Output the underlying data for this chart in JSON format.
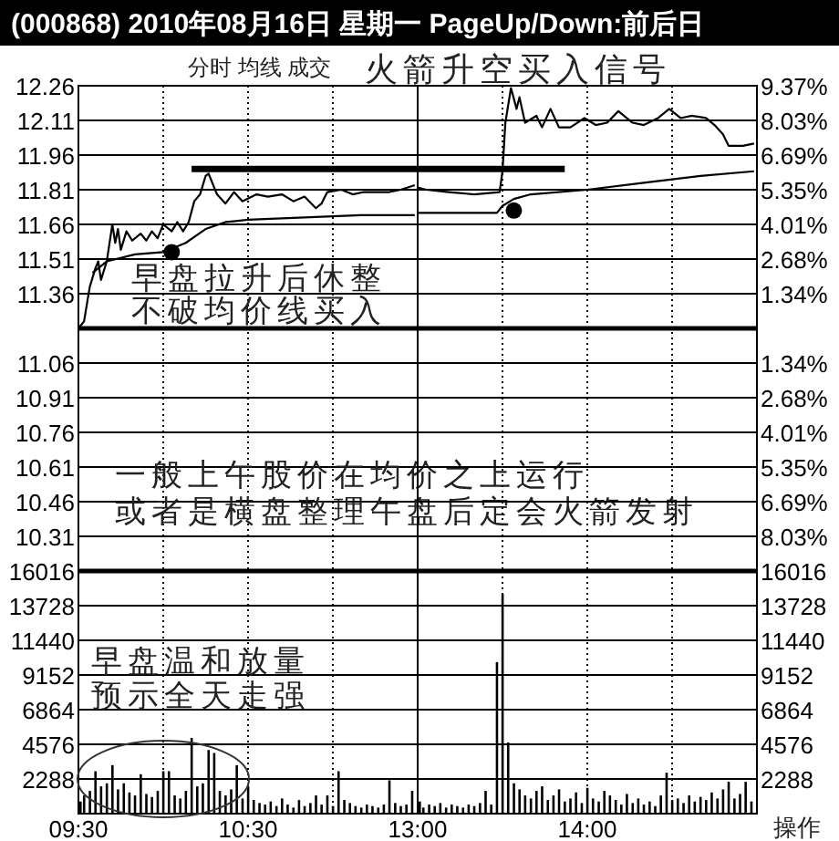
{
  "chart_data": [
    {
      "type": "line",
      "title": "(000868) 2010年08月16日 星期一 PageUp/Down:前后日",
      "annotations": [
        "分时 均线 成交",
        "火箭升空买入信号",
        "早盘拉升后休整",
        "不破均价线买入",
        "一般上午股价在均价之上运行",
        "或者是横盘整理午盘后定会火箭发射"
      ],
      "xlim": [
        9.5,
        11.5
      ],
      "xticks": [
        9.5,
        10,
        10.5,
        11
      ],
      "ylim": [
        10.16,
        12.26
      ],
      "yticks": [
        12.26,
        12.11,
        11.96,
        11.81,
        11.66,
        11.51,
        11.36,
        11.06,
        10.91,
        10.76,
        10.61,
        10.46,
        10.31
      ],
      "ref_lines": [
        {
          "axis": "y",
          "value": 11.21
        }
      ],
      "grid": true,
      "tick_labels": "y",
      "series": [
        {
          "color": "#000000",
          "x": [
            9.5,
            9.533,
            9.567,
            9.6,
            9.617,
            9.633,
            9.667,
            9.7,
            9.717,
            9.733,
            9.75,
            9.783,
            9.817,
            9.867,
            9.9,
            9.933,
            9.967,
            10,
            10.05,
            10.083,
            10.117,
            10.15,
            10.183,
            10.217,
            10.25,
            10.267,
            10.317,
            10.367,
            10.417,
            10.467,
            10.55,
            10.617,
            10.7,
            10.767,
            10.833,
            10.9,
            10.933,
            10.967,
            11.05,
            11.117,
            11.183,
            11.333,
            11.4,
            11.483
          ],
          "values": [
            11.21,
            11.24,
            11.39,
            11.47,
            11.5,
            11.42,
            11.5,
            11.66,
            11.58,
            11.64,
            11.55,
            11.63,
            11.59,
            11.62,
            11.59,
            11.63,
            11.6,
            11.66,
            11.63,
            11.67,
            11.63,
            11.67,
            11.76,
            11.79,
            11.87,
            11.88,
            11.79,
            11.75,
            11.8,
            11.76,
            11.79,
            11.78,
            11.79,
            11.76,
            11.78,
            11.73,
            11.75,
            11.8,
            11.81,
            11.79,
            11.8,
            11.8,
            11.81,
            11.83
          ]
        },
        {
          "color": "#000000",
          "x": [
            9.583,
            9.667,
            9.833,
            10,
            10.133,
            10.25,
            10.367,
            10.5,
            10.833,
            11.167,
            11.483
          ],
          "values": [
            11.45,
            11.5,
            11.53,
            11.54,
            11.58,
            11.64,
            11.67,
            11.68,
            11.69,
            11.7,
            11.7
          ]
        },
        {
          "color": "#000000",
          "x": [
            10.167,
            11.5
          ],
          "values": [
            11.9,
            11.9
          ]
        },
        {
          "type": "scatter",
          "color": "#000000",
          "marker": "circle",
          "x": [
            10.05
          ],
          "values": [
            11.54
          ]
        }
      ]
    },
    {
      "type": "line",
      "xlim": [
        13,
        15
      ],
      "xticks": [
        13,
        13.5,
        14,
        14.5
      ],
      "ylim": [
        10.16,
        12.26
      ],
      "yticks": [
        12.26,
        12.11,
        11.96,
        11.81,
        11.66,
        11.51,
        11.36,
        11.06,
        10.91,
        10.76,
        10.61,
        10.46,
        10.31
      ],
      "y2lim": [
        -9.37,
        9.37
      ],
      "y2ticks": [
        {
          "value": 9.37,
          "label": "9.37%"
        },
        {
          "value": 8.03,
          "label": "8.03%"
        },
        {
          "value": 6.69,
          "label": "6.69%"
        },
        {
          "value": 5.35,
          "label": "5.35%"
        },
        {
          "value": 4.01,
          "label": "4.01%"
        },
        {
          "value": 2.68,
          "label": "2.68%"
        },
        {
          "value": 1.34,
          "label": "1.34%"
        },
        {
          "value": -1.34,
          "label": "1.34%"
        },
        {
          "value": -2.68,
          "label": "2.68%"
        },
        {
          "value": -4.01,
          "label": "4.01%"
        },
        {
          "value": -5.35,
          "label": "5.35%"
        },
        {
          "value": -6.69,
          "label": "6.69%"
        },
        {
          "value": -8.03,
          "label": "8.03%"
        }
      ],
      "ref_lines": [
        {
          "axis": "y",
          "value": 11.21
        }
      ],
      "grid": true,
      "tick_labels": false,
      "series": [
        {
          "color": "#000000",
          "x": [
            13,
            13.05,
            13.183,
            13.333,
            13.483,
            13.5,
            13.517,
            13.55,
            13.583,
            13.6,
            13.633,
            13.7,
            13.733,
            13.783,
            13.833,
            13.9,
            13.983,
            14.05,
            14.117,
            14.183,
            14.267,
            14.333,
            14.417,
            14.483,
            14.55,
            14.617,
            14.7,
            14.75,
            14.8,
            14.833,
            14.917,
            14.983
          ],
          "values": [
            11.82,
            11.81,
            11.8,
            11.79,
            11.8,
            11.89,
            12.1,
            12.25,
            12.16,
            12.21,
            12.1,
            12.13,
            12.08,
            12.16,
            12.08,
            12.08,
            12.12,
            12.09,
            12.1,
            12.15,
            12.1,
            12.09,
            12.12,
            12.16,
            12.12,
            12.13,
            12.12,
            12.09,
            12.05,
            12.0,
            12.0,
            12.01
          ]
        },
        {
          "color": "#000000",
          "x": [
            13,
            13.467,
            13.5,
            13.567,
            13.667,
            14,
            14.333,
            14.667,
            14.983
          ],
          "values": [
            11.71,
            11.71,
            11.74,
            11.77,
            11.79,
            11.81,
            11.84,
            11.87,
            11.89
          ]
        },
        {
          "color": "#000000",
          "x": [
            13,
            13.867
          ],
          "values": [
            11.9,
            11.9
          ]
        },
        {
          "type": "scatter",
          "color": "#000000",
          "marker": "circle",
          "x": [
            13.567
          ],
          "values": [
            11.72
          ]
        }
      ]
    },
    {
      "type": "bar",
      "annotations": [
        "早盘温和放量",
        "预示全天走强"
      ],
      "xlim": [
        9.5,
        11.5
      ],
      "xticks": [
        {
          "value": 9.5,
          "label": "09:30"
        },
        {
          "value": 10,
          "label": null
        },
        {
          "value": 10.5,
          "label": "10:30"
        },
        {
          "value": 11,
          "label": null
        }
      ],
      "ylim": [
        0,
        16016
      ],
      "yticks": [
        2288,
        4576,
        6864,
        9152,
        11440,
        13728,
        16016
      ],
      "grid": true,
      "series": [
        {
          "color": "#000000",
          "x": [
            9.5,
            9.533,
            9.567,
            9.6,
            9.633,
            9.667,
            9.7,
            9.733,
            9.767,
            9.8,
            9.833,
            9.867,
            9.9,
            9.933,
            9.967,
            10,
            10.033,
            10.067,
            10.1,
            10.133,
            10.167,
            10.2,
            10.233,
            10.267,
            10.3,
            10.333,
            10.367,
            10.4,
            10.433,
            10.467,
            10.5,
            10.533,
            10.567,
            10.6,
            10.633,
            10.667,
            10.7,
            10.733,
            10.767,
            10.8,
            10.833,
            10.867,
            10.9,
            10.933,
            10.967,
            11,
            11.033,
            11.067,
            11.1,
            11.133,
            11.167,
            11.2,
            11.233,
            11.267,
            11.3,
            11.333,
            11.367,
            11.4,
            11.433,
            11.467
          ],
          "values": [
            800,
            1200,
            1500,
            2800,
            1800,
            2000,
            3200,
            1600,
            2000,
            1400,
            1200,
            2600,
            1300,
            1100,
            1500,
            2800,
            2800,
            1200,
            1000,
            1500,
            5000,
            1800,
            2000,
            4200,
            4000,
            1500,
            1200,
            1600,
            3200,
            1000,
            1800,
            900,
            700,
            600,
            800,
            500,
            1000,
            600,
            400,
            900,
            500,
            700,
            1200,
            600,
            1200,
            500,
            2800,
            900,
            700,
            500,
            400,
            600,
            500,
            400,
            600,
            2200,
            700,
            500,
            600,
            1500
          ]
        }
      ]
    },
    {
      "type": "bar",
      "annotations": [
        "操作"
      ],
      "xlim": [
        13,
        15
      ],
      "xticks": [
        {
          "value": 13,
          "label": "13:00"
        },
        {
          "value": 13.5,
          "label": null
        },
        {
          "value": 14,
          "label": "14:00"
        },
        {
          "value": 14.5,
          "label": null
        }
      ],
      "ylim": [
        0,
        16016
      ],
      "yticks": [
        2288,
        4576,
        6864,
        9152,
        11440,
        13728,
        16016
      ],
      "grid": true,
      "series": [
        {
          "color": "#000000",
          "x": [
            13,
            13.033,
            13.067,
            13.1,
            13.133,
            13.167,
            13.2,
            13.233,
            13.267,
            13.3,
            13.333,
            13.367,
            13.4,
            13.433,
            13.467,
            13.5,
            13.533,
            13.567,
            13.6,
            13.633,
            13.667,
            13.7,
            13.733,
            13.767,
            13.8,
            13.833,
            13.867,
            13.9,
            13.933,
            13.967,
            14,
            14.033,
            14.067,
            14.1,
            14.133,
            14.167,
            14.2,
            14.233,
            14.267,
            14.3,
            14.333,
            14.367,
            14.4,
            14.433,
            14.467,
            14.5,
            14.533,
            14.567,
            14.6,
            14.633,
            14.667,
            14.7,
            14.733,
            14.767,
            14.8,
            14.833,
            14.867,
            14.9,
            14.933,
            14.967
          ],
          "values": [
            800,
            400,
            600,
            500,
            700,
            400,
            600,
            500,
            400,
            600,
            500,
            700,
            1500,
            600,
            10000,
            14500,
            4700,
            2000,
            1600,
            1200,
            1000,
            1500,
            1800,
            900,
            1200,
            1600,
            800,
            1000,
            1400,
            700,
            1700,
            1000,
            800,
            1500,
            1200,
            900,
            600,
            1300,
            700,
            1000,
            600,
            800,
            500,
            1200,
            2700,
            900,
            1000,
            700,
            1200,
            800,
            1100,
            900,
            1400,
            1000,
            1600,
            2100,
            1000,
            1300,
            2100,
            800
          ]
        }
      ]
    }
  ]
}
